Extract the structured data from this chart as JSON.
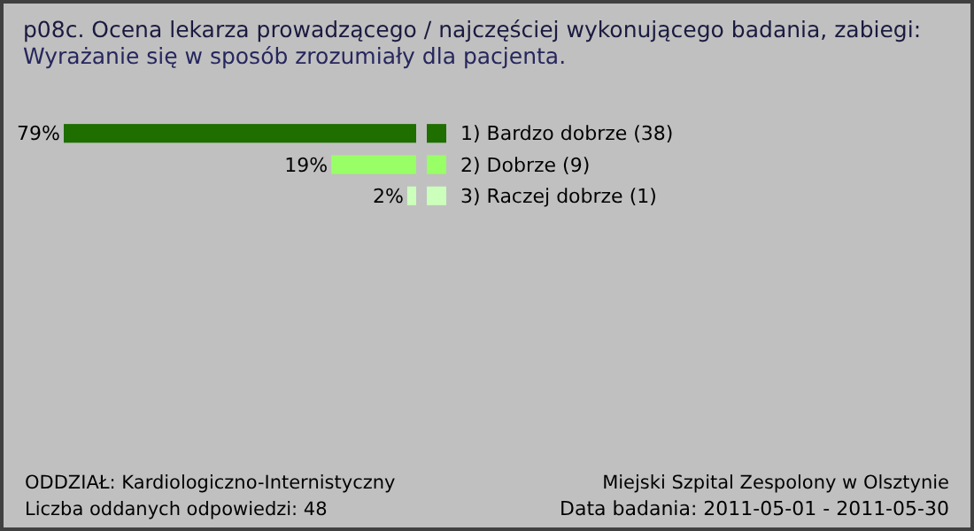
{
  "chart_data": {
    "type": "bar",
    "orientation": "horizontal",
    "title": "p08c. Ocena lekarza prowadzącego / najczęściej wykonującego badania, zabiegi:",
    "subtitle": "Wyrażanie się w sposób zrozumiały dla pacjenta.",
    "categories": [
      "1) Bardzo dobrze (38)",
      "2) Dobrze (9)",
      "3) Raczej dobrze (1)"
    ],
    "values": [
      79,
      19,
      2
    ],
    "value_labels": [
      "79%",
      "19%",
      "2%"
    ],
    "colors": [
      "#1e6e00",
      "#99ff66",
      "#ccffbb"
    ],
    "annotations": [
      "ODDZIAŁ: Kardiologiczno-Internistyczny",
      "Liczba oddanych odpowiedzi: 48",
      "Miejski Szpital Zespolony w Olsztynie",
      "Data badania: 2011-05-01 - 2011-05-30"
    ]
  }
}
